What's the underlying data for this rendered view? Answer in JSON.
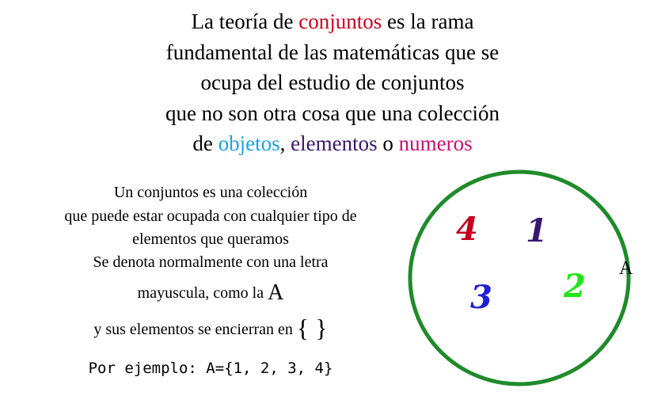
{
  "heading": {
    "line1": [
      "La teoría de ",
      "conjuntos",
      " es la rama"
    ],
    "line2": "fundamental de las matemáticas que se",
    "line3": "ocupa del estudio de conjuntos",
    "line4": "que no son otra cosa que una colección",
    "line5": [
      "de ",
      "objetos",
      ", ",
      "elementos",
      " o ",
      "numeros"
    ]
  },
  "description": {
    "line1": "Un conjuntos es una colección",
    "line2": "que puede estar ocupada con cualquier tipo de",
    "line3": "elementos que queramos",
    "line4": "Se denota normalmente con una letra",
    "line5_text": "mayuscula, como la ",
    "line5_letter": "A",
    "line6_text": "y sus elementos se encierran en ",
    "line6_braces": "{ }",
    "example": "Por ejemplo: A={1, 2, 3, 4}"
  },
  "diagram": {
    "set_label": "A",
    "circle_color": "#1e8b2a",
    "elements": [
      "4",
      "1",
      "3",
      "2"
    ],
    "element_colors": [
      "#c4001c",
      "#3a1670",
      "#1f1fd6",
      "#1ee616"
    ]
  },
  "colors": {
    "conjuntos": "#d0021b",
    "objetos": "#1aa3e8",
    "elementos": "#3a1670",
    "numeros": "#d10f6e"
  }
}
